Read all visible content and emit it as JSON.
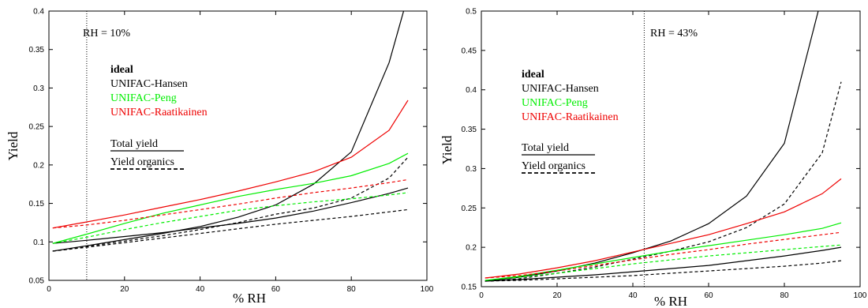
{
  "colors": {
    "ideal": "#000000",
    "unifac_hansen": "#000000",
    "unifac_peng": "#00ee00",
    "unifac_raatikainen": "#ee0000"
  },
  "chart_data": [
    {
      "type": "line",
      "xlabel": "% RH",
      "ylabel": "Yield",
      "xlim": [
        0,
        100
      ],
      "ylim": [
        0.05,
        0.4
      ],
      "xticks": [
        "0",
        "20",
        "40",
        "60",
        "80",
        "100"
      ],
      "yticks": [
        "0.05",
        "0.1",
        "0.15",
        "0.2",
        "0.25",
        "0.3",
        "0.35",
        "0.4"
      ],
      "marker": {
        "x": 10,
        "label": "RH = 10%"
      },
      "legend": {
        "placement": "upper-left",
        "entries": [
          "ideal",
          "UNIFAC-Hansen",
          "UNIFAC-Peng",
          "UNIFAC-Raatikainen"
        ],
        "styles": [
          "Total yield",
          "Yield organics"
        ]
      },
      "x": [
        1,
        10,
        20,
        30,
        40,
        50,
        60,
        70,
        80,
        90,
        95
      ],
      "series": [
        {
          "name": "ideal",
          "style": "Total yield",
          "values": [
            0.088,
            0.095,
            0.103,
            0.111,
            0.12,
            0.132,
            0.148,
            0.175,
            0.217,
            0.333,
            0.42
          ]
        },
        {
          "name": "ideal",
          "style": "Yield organics",
          "values": [
            0.088,
            0.094,
            0.101,
            0.108,
            0.116,
            0.125,
            0.136,
            0.144,
            0.157,
            0.183,
            0.21
          ]
        },
        {
          "name": "UNIFAC-Hansen",
          "style": "Total yield",
          "values": [
            0.098,
            0.102,
            0.107,
            0.112,
            0.118,
            0.124,
            0.131,
            0.14,
            0.151,
            0.163,
            0.17
          ]
        },
        {
          "name": "UNIFAC-Hansen",
          "style": "Yield organics",
          "values": [
            0.088,
            0.093,
            0.099,
            0.105,
            0.111,
            0.117,
            0.123,
            0.128,
            0.133,
            0.139,
            0.142
          ]
        },
        {
          "name": "UNIFAC-Peng",
          "style": "Total yield",
          "values": [
            0.098,
            0.11,
            0.124,
            0.137,
            0.148,
            0.159,
            0.168,
            0.176,
            0.186,
            0.202,
            0.215
          ]
        },
        {
          "name": "UNIFAC-Peng",
          "style": "Yield organics",
          "values": [
            0.098,
            0.106,
            0.116,
            0.125,
            0.133,
            0.141,
            0.147,
            0.152,
            0.156,
            0.161,
            0.164
          ]
        },
        {
          "name": "UNIFAC-Raatikainen",
          "style": "Total yield",
          "values": [
            0.118,
            0.126,
            0.135,
            0.145,
            0.155,
            0.166,
            0.178,
            0.191,
            0.21,
            0.245,
            0.284
          ]
        },
        {
          "name": "UNIFAC-Raatikainen",
          "style": "Yield organics",
          "values": [
            0.118,
            0.122,
            0.128,
            0.135,
            0.142,
            0.149,
            0.157,
            0.164,
            0.17,
            0.177,
            0.181
          ]
        }
      ]
    },
    {
      "type": "line",
      "xlabel": "% RH",
      "ylabel": "Yield",
      "xlim": [
        0,
        100
      ],
      "ylim": [
        0.15,
        0.5
      ],
      "xticks": [
        "0",
        "20",
        "40",
        "60",
        "80",
        "100"
      ],
      "yticks": [
        "0.15",
        "0.2",
        "0.25",
        "0.3",
        "0.35",
        "0.4",
        "0.45",
        "0.5"
      ],
      "marker": {
        "x": 43,
        "label": "RH = 43%"
      },
      "legend": {
        "placement": "upper-left",
        "entries": [
          "ideal",
          "UNIFAC-Hansen",
          "UNIFAC-Peng",
          "UNIFAC-Raatikainen"
        ],
        "styles": [
          "Total yield",
          "Yield organics"
        ]
      },
      "x": [
        1,
        10,
        20,
        30,
        40,
        50,
        60,
        70,
        80,
        90,
        95
      ],
      "series": [
        {
          "name": "ideal",
          "style": "Total yield",
          "values": [
            0.157,
            0.162,
            0.17,
            0.18,
            0.193,
            0.208,
            0.23,
            0.265,
            0.332,
            0.52,
            0.6
          ]
        },
        {
          "name": "ideal",
          "style": "Yield organics",
          "values": [
            0.157,
            0.16,
            0.167,
            0.175,
            0.185,
            0.195,
            0.207,
            0.225,
            0.255,
            0.32,
            0.41
          ]
        },
        {
          "name": "UNIFAC-Hansen",
          "style": "Total yield",
          "values": [
            0.157,
            0.159,
            0.162,
            0.165,
            0.169,
            0.173,
            0.177,
            0.183,
            0.189,
            0.196,
            0.2
          ]
        },
        {
          "name": "UNIFAC-Hansen",
          "style": "Yield organics",
          "values": [
            0.157,
            0.158,
            0.16,
            0.162,
            0.164,
            0.167,
            0.17,
            0.173,
            0.176,
            0.18,
            0.183
          ]
        },
        {
          "name": "UNIFAC-Peng",
          "style": "Total yield",
          "values": [
            0.158,
            0.163,
            0.171,
            0.179,
            0.187,
            0.195,
            0.202,
            0.209,
            0.216,
            0.224,
            0.231
          ]
        },
        {
          "name": "UNIFAC-Peng",
          "style": "Yield organics",
          "values": [
            0.158,
            0.162,
            0.167,
            0.173,
            0.179,
            0.184,
            0.189,
            0.193,
            0.197,
            0.201,
            0.203
          ]
        },
        {
          "name": "UNIFAC-Raatikainen",
          "style": "Total yield",
          "values": [
            0.161,
            0.166,
            0.174,
            0.183,
            0.194,
            0.205,
            0.216,
            0.23,
            0.245,
            0.268,
            0.287
          ]
        },
        {
          "name": "UNIFAC-Raatikainen",
          "style": "Yield organics",
          "values": [
            0.161,
            0.164,
            0.17,
            0.177,
            0.184,
            0.191,
            0.197,
            0.204,
            0.21,
            0.216,
            0.219
          ]
        }
      ]
    }
  ]
}
